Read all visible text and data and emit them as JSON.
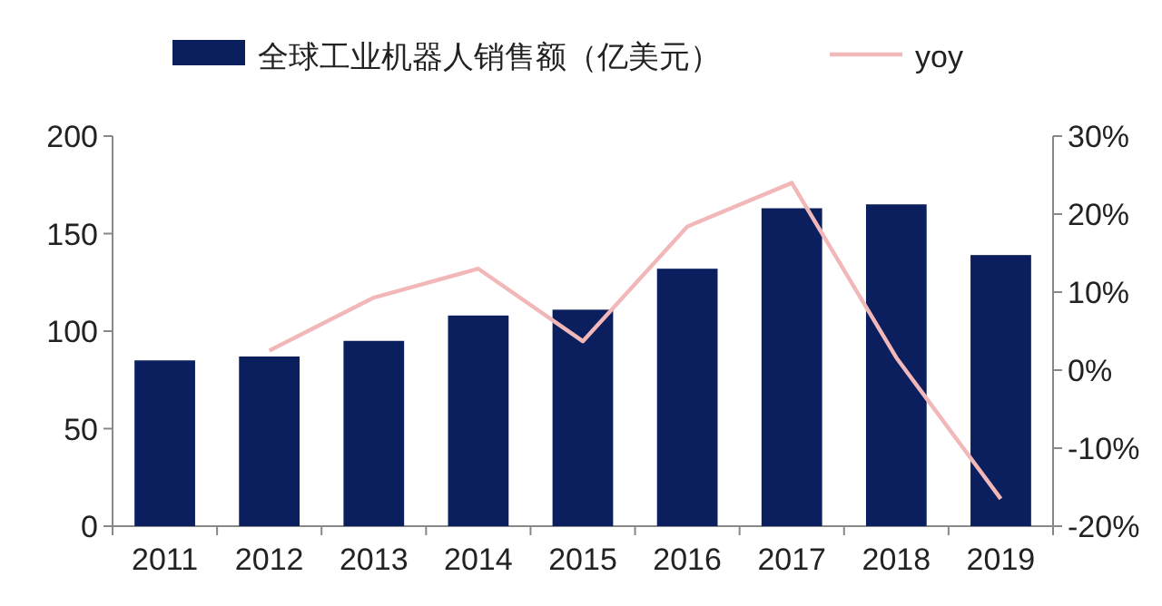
{
  "chart_data": {
    "type": "bar",
    "categories": [
      "2011",
      "2012",
      "2013",
      "2014",
      "2015",
      "2016",
      "2017",
      "2018",
      "2019"
    ],
    "series": [
      {
        "name": "全球工业机器人销售额（亿美元）",
        "color": "#0b1f5e",
        "values": [
          85,
          87,
          95,
          108,
          111,
          132,
          163,
          165,
          139
        ]
      },
      {
        "name": "yoy",
        "type": "line",
        "axis": "y2",
        "color": "#f2b8b9",
        "values": [
          null,
          2.5,
          9.3,
          13,
          3.7,
          18.4,
          24,
          1.6,
          -16.5
        ]
      }
    ],
    "ylim": [
      0,
      200
    ],
    "yticks": [
      0,
      50,
      100,
      150,
      200
    ],
    "y2lim": [
      -20,
      30
    ],
    "y2ticks": [
      {
        "value": -20,
        "label": "-20%"
      },
      {
        "value": -10,
        "label": "-10%"
      },
      {
        "value": 0,
        "label": "0%"
      },
      {
        "value": 10,
        "label": "10%"
      },
      {
        "value": 20,
        "label": "20%"
      },
      {
        "value": 30,
        "label": "30%"
      }
    ],
    "legend": "top",
    "grid": false
  }
}
